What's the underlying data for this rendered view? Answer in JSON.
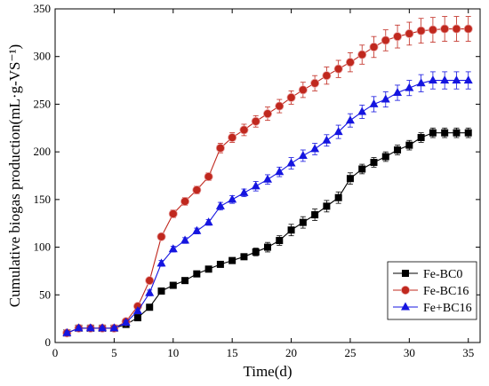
{
  "chart_data": {
    "type": "line",
    "xlabel": "Time(d)",
    "ylabel": "Cumulative biogas production(mL·g-VS⁻¹)",
    "xlim": [
      0,
      36
    ],
    "ylim": [
      0,
      350
    ],
    "xticks": [
      0,
      5,
      10,
      15,
      20,
      25,
      30,
      35
    ],
    "yticks": [
      0,
      50,
      100,
      150,
      200,
      250,
      300,
      350
    ],
    "grid": false,
    "legend_position": "bottom-right",
    "x": [
      1,
      2,
      3,
      4,
      5,
      6,
      7,
      8,
      9,
      10,
      11,
      12,
      13,
      14,
      15,
      16,
      17,
      18,
      19,
      20,
      21,
      22,
      23,
      24,
      25,
      26,
      27,
      28,
      29,
      30,
      31,
      32,
      33,
      34,
      35
    ],
    "series": [
      {
        "name": "Fe-BC0",
        "marker": "square",
        "color": "#000000",
        "values": [
          10,
          15,
          15,
          15,
          15,
          19,
          26,
          37,
          54,
          60,
          65,
          72,
          77,
          82,
          86,
          90,
          95,
          100,
          107,
          118,
          126,
          134,
          143,
          152,
          172,
          182,
          189,
          195,
          202,
          207,
          215,
          220,
          220,
          220,
          220
        ],
        "errors": [
          2,
          2,
          2,
          2,
          2,
          2,
          2,
          2,
          2,
          2,
          2,
          2,
          2,
          2,
          3,
          3,
          4,
          5,
          5,
          6,
          6,
          6,
          6,
          6,
          6,
          5,
          5,
          5,
          5,
          5,
          5,
          5,
          5,
          5,
          5
        ]
      },
      {
        "name": "Fe-BC16",
        "marker": "circle",
        "color": "#c0281e",
        "values": [
          10,
          15,
          15,
          15,
          15,
          22,
          38,
          65,
          111,
          135,
          148,
          160,
          174,
          204,
          215,
          223,
          232,
          240,
          248,
          257,
          265,
          272,
          280,
          287,
          294,
          302,
          310,
          317,
          321,
          324,
          327,
          328,
          329,
          329,
          329
        ],
        "errors": [
          2,
          2,
          2,
          2,
          2,
          2,
          3,
          3,
          3,
          4,
          4,
          4,
          4,
          5,
          5,
          6,
          6,
          7,
          7,
          7,
          8,
          8,
          9,
          9,
          10,
          10,
          11,
          11,
          12,
          12,
          13,
          13,
          13,
          13,
          13
        ]
      },
      {
        "name": "Fe+BC16",
        "marker": "triangle",
        "color": "#1515e0",
        "values": [
          10,
          15,
          15,
          15,
          15,
          21,
          33,
          52,
          83,
          98,
          107,
          117,
          126,
          143,
          150,
          157,
          164,
          171,
          179,
          188,
          196,
          203,
          212,
          221,
          233,
          242,
          250,
          255,
          262,
          267,
          272,
          275,
          275,
          275,
          275
        ],
        "errors": [
          2,
          2,
          2,
          2,
          2,
          2,
          2,
          3,
          3,
          3,
          3,
          3,
          3,
          4,
          4,
          4,
          5,
          5,
          5,
          6,
          6,
          6,
          6,
          7,
          7,
          7,
          8,
          8,
          8,
          8,
          9,
          9,
          9,
          9,
          9
        ]
      }
    ]
  }
}
